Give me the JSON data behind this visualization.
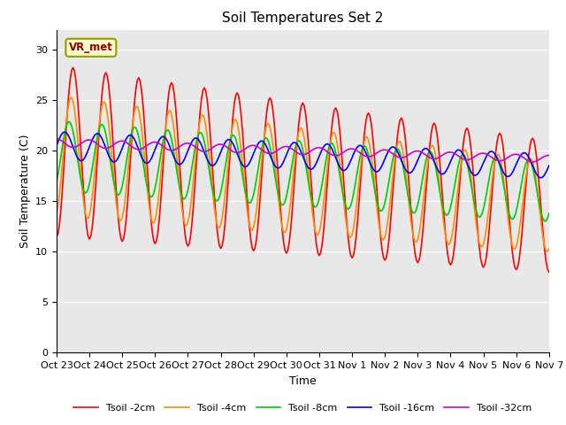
{
  "title": "Soil Temperatures Set 2",
  "xlabel": "Time",
  "ylabel": "Soil Temperature (C)",
  "ylim": [
    0,
    32
  ],
  "yticks": [
    0,
    5,
    10,
    15,
    20,
    25,
    30
  ],
  "x_tick_labels": [
    "Oct 23",
    "Oct 24",
    "Oct 25",
    "Oct 26",
    "Oct 27",
    "Oct 28",
    "Oct 29",
    "Oct 30",
    "Oct 31",
    "Nov 1",
    "Nov 2",
    "Nov 3",
    "Nov 4",
    "Nov 5",
    "Nov 6",
    "Nov 7"
  ],
  "annotation_text": "VR_met",
  "colors": {
    "Tsoil -2cm": "#ff0000",
    "Tsoil -4cm": "#ff8c00",
    "Tsoil -8cm": "#00cc00",
    "Tsoil -16cm": "#0000ff",
    "Tsoil -32cm": "#cc00cc"
  },
  "bg_color": "#e8e8e8",
  "title_fontsize": 11,
  "tick_fontsize": 8,
  "label_fontsize": 9
}
